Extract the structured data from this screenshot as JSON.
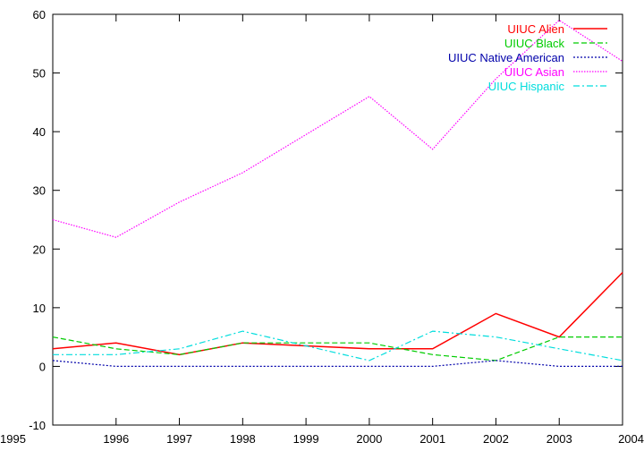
{
  "chart_data": {
    "type": "line",
    "x": [
      1995,
      1996,
      1997,
      1998,
      1999,
      2000,
      2001,
      2002,
      2003,
      2004
    ],
    "xlim": [
      1995,
      2004
    ],
    "ylim": [
      -10,
      60
    ],
    "xticks": [
      "1995",
      "1996",
      "1997",
      "1998",
      "1999",
      "2000",
      "2001",
      "2002",
      "2003",
      "2004"
    ],
    "yticks": [
      "-10",
      "0",
      "10",
      "20",
      "30",
      "40",
      "50",
      "60"
    ],
    "grid": false,
    "legend_position": "top-right",
    "series": [
      {
        "name": "UIUC Alien",
        "color": "#ff0000",
        "dash": "solid",
        "values": [
          3,
          4,
          2,
          4,
          3.5,
          3,
          3,
          9,
          5,
          16
        ]
      },
      {
        "name": "UIUC Black",
        "color": "#00cc00",
        "dash": "dashed",
        "values": [
          5,
          3,
          2,
          4,
          4,
          4,
          2,
          1,
          5,
          5
        ]
      },
      {
        "name": "UIUC Native American",
        "color": "#0000aa",
        "dash": "dotted",
        "values": [
          1,
          0,
          0,
          0,
          0,
          0,
          0,
          1,
          0,
          0
        ]
      },
      {
        "name": "UIUC Asian",
        "color": "#ff00ff",
        "dash": "fine-dotted",
        "values": [
          25,
          22,
          28,
          33,
          39.5,
          46,
          37,
          49,
          59,
          52
        ]
      },
      {
        "name": "UIUC Hispanic",
        "color": "#00dddd",
        "dash": "dash-dot",
        "values": [
          2,
          2,
          3,
          6,
          3.5,
          1,
          6,
          5,
          3,
          1
        ]
      }
    ]
  }
}
